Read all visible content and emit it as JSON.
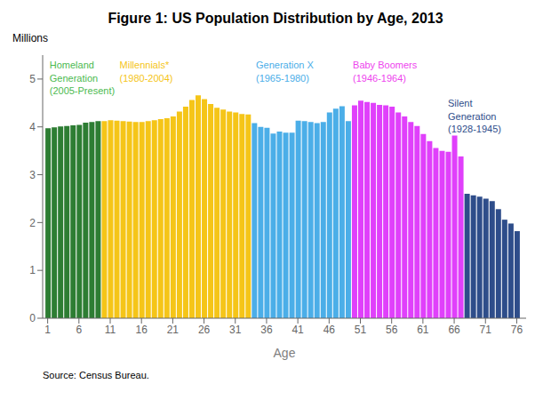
{
  "chart_data": {
    "type": "bar",
    "title": "Figure 1: US Population Distribution by Age, 2013",
    "xlabel": "Age",
    "ylabel": "Millions",
    "source": "Source: Census Bureau.",
    "x": [
      1,
      2,
      3,
      4,
      5,
      6,
      7,
      8,
      9,
      10,
      11,
      12,
      13,
      14,
      15,
      16,
      17,
      18,
      19,
      20,
      21,
      22,
      23,
      24,
      25,
      26,
      27,
      28,
      29,
      30,
      31,
      32,
      33,
      34,
      35,
      36,
      37,
      38,
      39,
      40,
      41,
      42,
      43,
      44,
      45,
      46,
      47,
      48,
      49,
      50,
      51,
      52,
      53,
      54,
      55,
      56,
      57,
      58,
      59,
      60,
      61,
      62,
      63,
      64,
      65,
      66,
      67,
      68,
      69,
      70,
      71,
      72,
      73,
      74,
      75,
      76
    ],
    "values": [
      3.97,
      3.99,
      4.01,
      4.02,
      4.03,
      4.04,
      4.09,
      4.1,
      4.12,
      4.12,
      4.14,
      4.13,
      4.12,
      4.11,
      4.1,
      4.1,
      4.12,
      4.14,
      4.16,
      4.18,
      4.22,
      4.32,
      4.42,
      4.56,
      4.66,
      4.58,
      4.48,
      4.4,
      4.36,
      4.32,
      4.3,
      4.27,
      4.26,
      4.08,
      4.0,
      3.98,
      3.86,
      3.9,
      3.88,
      3.88,
      4.13,
      4.12,
      4.1,
      4.08,
      4.1,
      4.3,
      4.38,
      4.43,
      4.12,
      4.45,
      4.55,
      4.52,
      4.5,
      4.46,
      4.45,
      4.42,
      4.3,
      4.22,
      4.1,
      4.02,
      3.85,
      3.7,
      3.56,
      3.5,
      3.48,
      3.82,
      3.38,
      2.6,
      2.57,
      2.54,
      2.5,
      2.45,
      2.28,
      2.06,
      1.98,
      1.82
    ],
    "colors": [
      "#2d7d33",
      "#2d7d33",
      "#2d7d33",
      "#2d7d33",
      "#2d7d33",
      "#2d7d33",
      "#2d7d33",
      "#2d7d33",
      "#2d7d33",
      "#f5c518",
      "#f5c518",
      "#f5c518",
      "#f5c518",
      "#f5c518",
      "#f5c518",
      "#f5c518",
      "#f5c518",
      "#f5c518",
      "#f5c518",
      "#f5c518",
      "#f5c518",
      "#f5c518",
      "#f5c518",
      "#f5c518",
      "#f5c518",
      "#f5c518",
      "#f5c518",
      "#f5c518",
      "#f5c518",
      "#f5c518",
      "#f5c518",
      "#f5c518",
      "#f5c518",
      "#4baee8",
      "#4baee8",
      "#4baee8",
      "#4baee8",
      "#4baee8",
      "#4baee8",
      "#4baee8",
      "#4baee8",
      "#4baee8",
      "#4baee8",
      "#4baee8",
      "#4baee8",
      "#4baee8",
      "#4baee8",
      "#4baee8",
      "#4baee8",
      "#e040fb",
      "#e040fb",
      "#e040fb",
      "#e040fb",
      "#e040fb",
      "#e040fb",
      "#e040fb",
      "#e040fb",
      "#e040fb",
      "#e040fb",
      "#e040fb",
      "#e040fb",
      "#e040fb",
      "#e040fb",
      "#e040fb",
      "#e040fb",
      "#e040fb",
      "#e040fb",
      "#2e4d8a",
      "#2e4d8a",
      "#2e4d8a",
      "#2e4d8a",
      "#2e4d8a",
      "#2e4d8a",
      "#2e4d8a",
      "#2e4d8a",
      "#2e4d8a"
    ],
    "xlim": [
      0.2,
      77.5
    ],
    "xticks": [
      1,
      6,
      11,
      16,
      21,
      26,
      31,
      36,
      41,
      46,
      51,
      56,
      61,
      66,
      71,
      76
    ],
    "ylim": [
      0,
      5.5
    ],
    "yticks": [
      0,
      1,
      2,
      3,
      4,
      5
    ],
    "grid": false,
    "annotations": [
      {
        "text": "Homeland\nGeneration\n(2005-Present)",
        "x": 1.3,
        "y": 5.42,
        "color": "#4cba50"
      },
      {
        "text": "Millennials*\n(1980-2004)",
        "x": 12.5,
        "y": 5.42,
        "color": "#f5c518"
      },
      {
        "text": "Generation X\n(1965-1980)",
        "x": 34.3,
        "y": 5.42,
        "color": "#4baee8"
      },
      {
        "text": "Baby Boomers\n(1946-1964)",
        "x": 49.8,
        "y": 5.42,
        "color": "#ee44ee"
      },
      {
        "text": "Silent\nGeneration\n(1928-1945)",
        "x": 65.0,
        "y": 4.62,
        "color": "#2e4d8a"
      }
    ]
  }
}
